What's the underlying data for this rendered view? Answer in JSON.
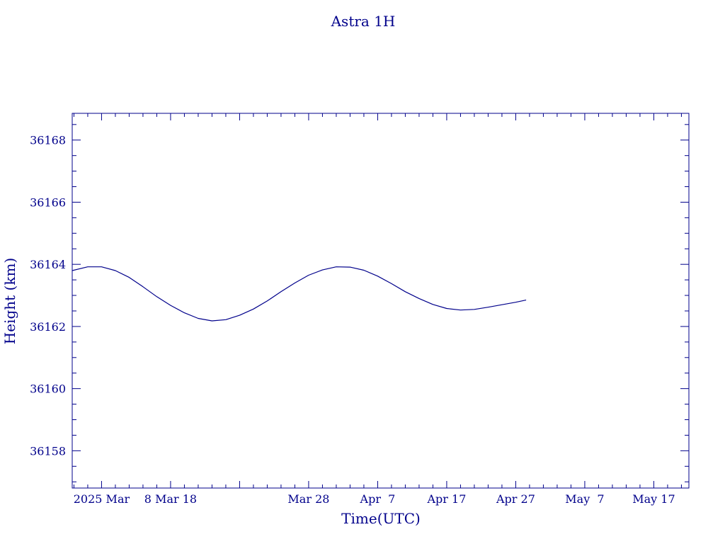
{
  "colors": {
    "ink": "#00008b",
    "background": "#ffffff"
  },
  "chart_data": {
    "type": "line",
    "title": "Astra 1H",
    "xlabel": "Time(UTC)",
    "ylabel": "Height (km)",
    "x_axis_type": "date",
    "xlim": [
      "2025-02-21T18:00",
      "2025-05-22T02:00"
    ],
    "ylim": [
      36156.8,
      36168.86
    ],
    "grid": false,
    "x_ticks": [
      {
        "date": "2025-02-26",
        "label": "2025 Mar"
      },
      {
        "date": "2025-03-08",
        "label": "8 Mar 18"
      },
      {
        "date": "2025-03-28",
        "label": "Mar 28"
      },
      {
        "date": "2025-04-07",
        "label": "Apr  7"
      },
      {
        "date": "2025-04-17",
        "label": "Apr 17"
      },
      {
        "date": "2025-04-27",
        "label": "Apr 27"
      },
      {
        "date": "2025-05-07",
        "label": "May  7"
      },
      {
        "date": "2025-05-17",
        "label": "May 17"
      }
    ],
    "y_ticks": [
      36158,
      36160,
      36162,
      36164,
      36166,
      36168
    ],
    "series": [
      {
        "values": [
          {
            "x": "2025-02-21T18:00",
            "y": 36163.8
          },
          {
            "x": "2025-02-24T00:00",
            "y": 36163.92
          },
          {
            "x": "2025-02-26T00:00",
            "y": 36163.92
          },
          {
            "x": "2025-02-28T00:00",
            "y": 36163.8
          },
          {
            "x": "2025-03-02T00:00",
            "y": 36163.58
          },
          {
            "x": "2025-03-04T00:00",
            "y": 36163.28
          },
          {
            "x": "2025-03-06T00:00",
            "y": 36162.96
          },
          {
            "x": "2025-03-08T00:00",
            "y": 36162.68
          },
          {
            "x": "2025-03-10T00:00",
            "y": 36162.44
          },
          {
            "x": "2025-03-12T00:00",
            "y": 36162.26
          },
          {
            "x": "2025-03-14T00:00",
            "y": 36162.18
          },
          {
            "x": "2025-03-16T00:00",
            "y": 36162.22
          },
          {
            "x": "2025-03-18T00:00",
            "y": 36162.36
          },
          {
            "x": "2025-03-20T00:00",
            "y": 36162.56
          },
          {
            "x": "2025-03-22T00:00",
            "y": 36162.82
          },
          {
            "x": "2025-03-24T00:00",
            "y": 36163.12
          },
          {
            "x": "2025-03-26T00:00",
            "y": 36163.4
          },
          {
            "x": "2025-03-28T00:00",
            "y": 36163.65
          },
          {
            "x": "2025-03-30T00:00",
            "y": 36163.82
          },
          {
            "x": "2025-04-01T00:00",
            "y": 36163.92
          },
          {
            "x": "2025-04-03T00:00",
            "y": 36163.91
          },
          {
            "x": "2025-04-05T00:00",
            "y": 36163.81
          },
          {
            "x": "2025-04-07T00:00",
            "y": 36163.62
          },
          {
            "x": "2025-04-09T00:00",
            "y": 36163.38
          },
          {
            "x": "2025-04-11T00:00",
            "y": 36163.12
          },
          {
            "x": "2025-04-13T00:00",
            "y": 36162.9
          },
          {
            "x": "2025-04-15T00:00",
            "y": 36162.71
          },
          {
            "x": "2025-04-17T00:00",
            "y": 36162.58
          },
          {
            "x": "2025-04-19T00:00",
            "y": 36162.53
          },
          {
            "x": "2025-04-21T00:00",
            "y": 36162.55
          },
          {
            "x": "2025-04-23T00:00",
            "y": 36162.62
          },
          {
            "x": "2025-04-25T00:00",
            "y": 36162.7
          },
          {
            "x": "2025-04-27T00:00",
            "y": 36162.78
          },
          {
            "x": "2025-04-28T12:00",
            "y": 36162.85
          }
        ]
      }
    ]
  }
}
